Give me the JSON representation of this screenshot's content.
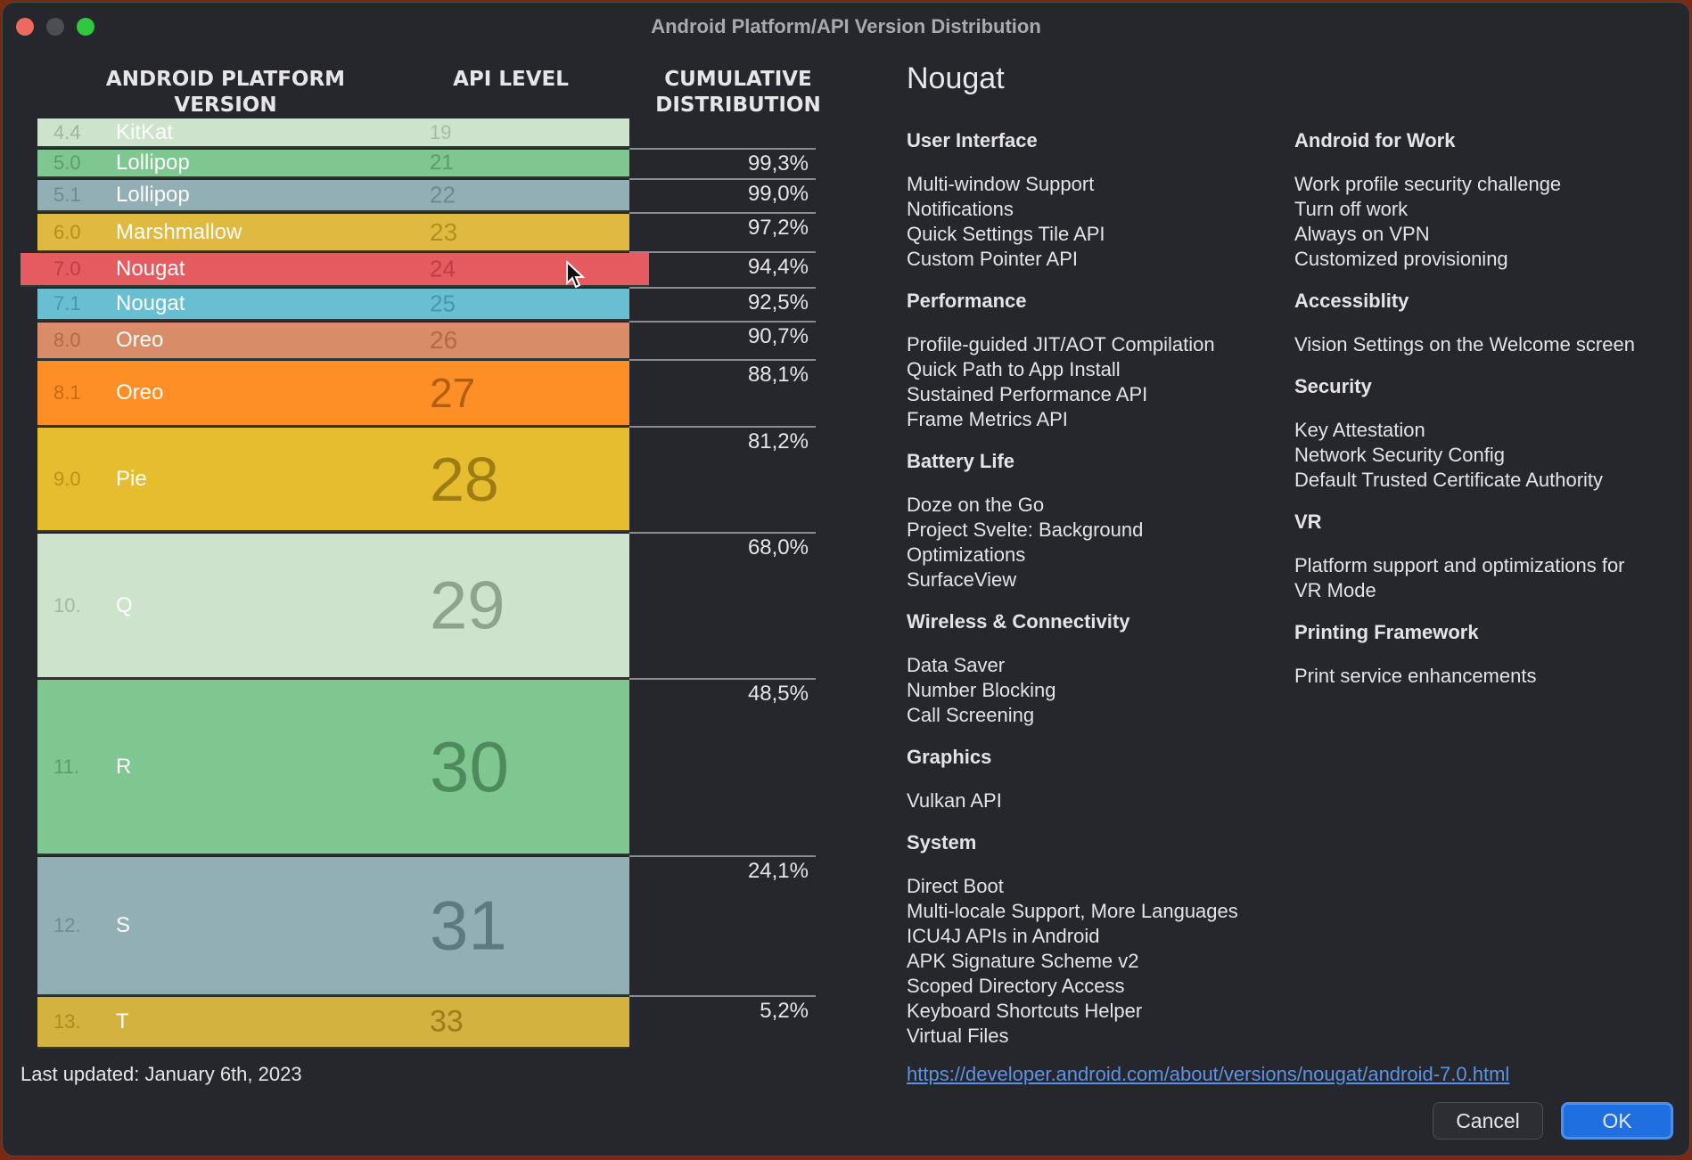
{
  "window": {
    "title": "Android Platform/API Version Distribution",
    "controls": [
      "close",
      "minimize",
      "maximize"
    ]
  },
  "table": {
    "headers": {
      "version": "ANDROID PLATFORM\nVERSION",
      "version_l1": "ANDROID PLATFORM",
      "version_l2": "VERSION",
      "api": "API LEVEL",
      "dist_l1": "CUMULATIVE",
      "dist_l2": "DISTRIBUTION"
    },
    "selected_index": 4,
    "rows": [
      {
        "version": "4.4",
        "name": "KitKat",
        "api": "19",
        "cumulative": "",
        "color": "#cde3cb",
        "ver_color": "#9fb49e",
        "api_color": "#a7bca6"
      },
      {
        "version": "5.0",
        "name": "Lollipop",
        "api": "21",
        "cumulative": "99,3%",
        "color": "#7ec790",
        "ver_color": "#5b9c6a",
        "api_color": "#5b9c6a"
      },
      {
        "version": "5.1",
        "name": "Lollipop",
        "api": "22",
        "cumulative": "99,0%",
        "color": "#91afb5",
        "ver_color": "#6c8a90",
        "api_color": "#6c8a90"
      },
      {
        "version": "6.0",
        "name": "Marshmallow",
        "api": "23",
        "cumulative": "97,2%",
        "color": "#e0b941",
        "ver_color": "#b28f23",
        "api_color": "#b28f23"
      },
      {
        "version": "7.0",
        "name": "Nougat",
        "api": "24",
        "cumulative": "94,4%",
        "color": "#e65b5f",
        "ver_color": "#bd3f43",
        "api_color": "#bd3f43"
      },
      {
        "version": "7.1",
        "name": "Nougat",
        "api": "25",
        "cumulative": "92,5%",
        "color": "#69bfd1",
        "ver_color": "#4897a8",
        "api_color": "#4897a8"
      },
      {
        "version": "8.0",
        "name": "Oreo",
        "api": "26",
        "cumulative": "90,7%",
        "color": "#d88c68",
        "ver_color": "#b06a48",
        "api_color": "#b06a48"
      },
      {
        "version": "8.1",
        "name": "Oreo",
        "api": "27",
        "cumulative": "88,1%",
        "color": "#fd8f26",
        "ver_color": "#c96a12",
        "api_color": "#b25e10"
      },
      {
        "version": "9.0",
        "name": "Pie",
        "api": "28",
        "cumulative": "81,2%",
        "color": "#e6bd2f",
        "ver_color": "#b8921a",
        "api_color": "#9e7c14"
      },
      {
        "version": "10.",
        "name": "Q",
        "api": "29",
        "cumulative": "68,0%",
        "color": "#cde3cb",
        "ver_color": "#a2b8a1",
        "api_color": "#8fa48e"
      },
      {
        "version": "11.",
        "name": "R",
        "api": "30",
        "cumulative": "48,5%",
        "color": "#7ec790",
        "ver_color": "#5c9c6b",
        "api_color": "#4f8a5d"
      },
      {
        "version": "12.",
        "name": "S",
        "api": "31",
        "cumulative": "24,1%",
        "color": "#91afb5",
        "ver_color": "#6f8d93",
        "api_color": "#5c7a80"
      },
      {
        "version": "13.",
        "name": "T",
        "api": "33",
        "cumulative": "5,2%",
        "color": "#d4b23f",
        "ver_color": "#aa8b22",
        "api_color": "#9c7f1c"
      }
    ]
  },
  "footer": {
    "last_updated": "Last updated: January 6th, 2023"
  },
  "detail": {
    "title": "Nougat",
    "left_sections": [
      {
        "heading": "User Interface",
        "items": [
          "Multi-window Support",
          "Notifications",
          "Quick Settings Tile API",
          "Custom Pointer API"
        ]
      },
      {
        "heading": "Performance",
        "items": [
          "Profile-guided JIT/AOT Compilation",
          "Quick Path to App Install",
          "Sustained Performance API",
          "Frame Metrics API"
        ]
      },
      {
        "heading": "Battery Life",
        "items": [
          "Doze on the Go",
          "Project Svelte: Background",
          "Optimizations",
          "SurfaceView"
        ]
      },
      {
        "heading": "Wireless & Connectivity",
        "items": [
          "Data Saver",
          "Number Blocking",
          "Call Screening"
        ]
      },
      {
        "heading": "Graphics",
        "items": [
          "Vulkan API"
        ]
      },
      {
        "heading": "System",
        "items": [
          "Direct Boot",
          "Multi-locale Support, More Languages",
          "ICU4J APIs in Android",
          "APK Signature Scheme v2",
          "Scoped Directory Access",
          "Keyboard Shortcuts Helper",
          "Virtual Files"
        ]
      }
    ],
    "right_sections": [
      {
        "heading": "Android for Work",
        "items": [
          "Work profile security challenge",
          "Turn off work",
          "Always on VPN",
          "Customized provisioning"
        ]
      },
      {
        "heading": "Accessiblity",
        "items": [
          "Vision Settings on the Welcome screen"
        ]
      },
      {
        "heading": "Security",
        "items": [
          "Key Attestation",
          "Network Security Config",
          "Default Trusted Certificate Authority"
        ]
      },
      {
        "heading": "VR",
        "items": [
          "Platform support and optimizations for",
          "VR Mode"
        ]
      },
      {
        "heading": "Printing Framework",
        "items": [
          "Print service enhancements"
        ]
      }
    ],
    "link": "https://developer.android.com/about/versions/nougat/android-7.0.html"
  },
  "buttons": {
    "cancel": "Cancel",
    "ok": "OK"
  }
}
